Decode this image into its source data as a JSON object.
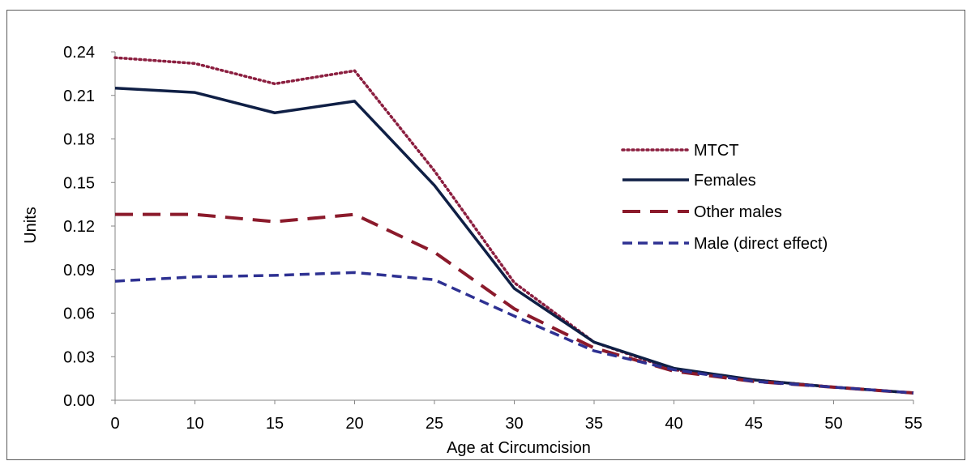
{
  "chart_data": {
    "type": "line",
    "title": "",
    "xlabel": "Age at Circumcision",
    "ylabel": "Units",
    "categories": [
      "0",
      "10",
      "15",
      "20",
      "25",
      "30",
      "35",
      "40",
      "45",
      "50",
      "55"
    ],
    "y_ticks": [
      "0.00",
      "0.03",
      "0.06",
      "0.09",
      "0.12",
      "0.15",
      "0.18",
      "0.21",
      "0.24"
    ],
    "ylim": [
      0,
      0.24
    ],
    "grid": false,
    "legend_position": "right",
    "series": [
      {
        "name": "MTCT",
        "color": "#8B1E3F",
        "style": "dotted",
        "values": [
          0.236,
          0.232,
          0.218,
          0.227,
          0.158,
          0.081,
          0.04,
          0.021,
          0.014,
          0.009,
          0.005
        ]
      },
      {
        "name": "Females",
        "color": "#0F1F45",
        "style": "solid",
        "values": [
          0.215,
          0.212,
          0.198,
          0.206,
          0.148,
          0.077,
          0.04,
          0.022,
          0.014,
          0.009,
          0.005
        ]
      },
      {
        "name": "Other males",
        "color": "#8B1A2B",
        "style": "dashed",
        "values": [
          0.128,
          0.128,
          0.123,
          0.128,
          0.102,
          0.063,
          0.036,
          0.02,
          0.013,
          0.009,
          0.005
        ]
      },
      {
        "name": "Male (direct effect)",
        "color": "#2E3192",
        "style": "short-dashed",
        "values": [
          0.082,
          0.085,
          0.086,
          0.088,
          0.083,
          0.058,
          0.034,
          0.021,
          0.013,
          0.009,
          0.005
        ]
      }
    ]
  }
}
